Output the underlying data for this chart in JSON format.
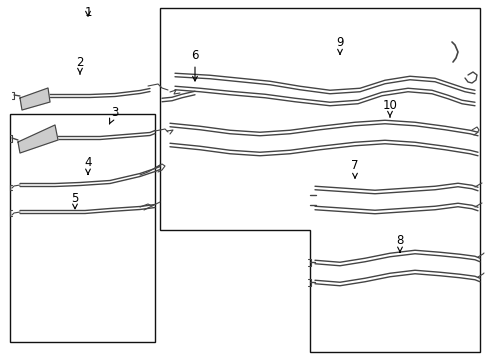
{
  "bg_color": "#ffffff",
  "border_color": "#111111",
  "line_color": "#444444",
  "label_color": "#000000",
  "fig_width": 4.9,
  "fig_height": 3.6,
  "dpi": 100
}
